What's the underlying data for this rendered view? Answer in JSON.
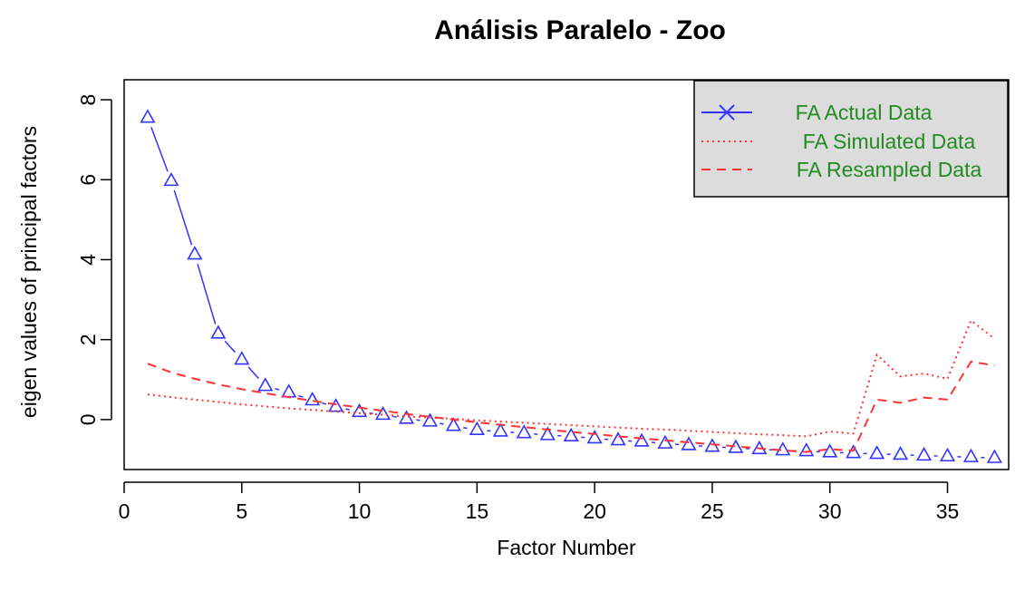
{
  "chart_data": {
    "type": "line",
    "title": "Análisis Paralelo - Zoo",
    "xlabel": "Factor Number",
    "ylabel": "eigen values of principal factors",
    "xlim": [
      0,
      37.6
    ],
    "ylim": [
      -1.25,
      8.5
    ],
    "x_ticks": [
      0,
      5,
      10,
      15,
      20,
      25,
      30,
      35
    ],
    "y_ticks": [
      0,
      2,
      4,
      6,
      8
    ],
    "grid": false,
    "legend_position": "top-right",
    "x": [
      1,
      2,
      3,
      4,
      5,
      6,
      7,
      8,
      9,
      10,
      11,
      12,
      13,
      14,
      15,
      16,
      17,
      18,
      19,
      20,
      21,
      22,
      23,
      24,
      25,
      26,
      27,
      28,
      29,
      30,
      31,
      32,
      33,
      34,
      35,
      36,
      37
    ],
    "series": [
      {
        "name": "FA  Actual Data",
        "color": "#3333ff",
        "style": "solid-with-triangles",
        "values": [
          7.55,
          5.97,
          4.13,
          2.15,
          1.5,
          0.84,
          0.68,
          0.48,
          0.32,
          0.19,
          0.12,
          0.02,
          -0.05,
          -0.16,
          -0.26,
          -0.3,
          -0.34,
          -0.39,
          -0.42,
          -0.47,
          -0.52,
          -0.55,
          -0.6,
          -0.64,
          -0.68,
          -0.71,
          -0.74,
          -0.77,
          -0.79,
          -0.82,
          -0.84,
          -0.86,
          -0.88,
          -0.9,
          -0.92,
          -0.94,
          -0.96
        ]
      },
      {
        "name": "FA  Simulated Data",
        "color": "#ff3333",
        "style": "dotted",
        "values": [
          0.63,
          0.56,
          0.5,
          0.44,
          0.38,
          0.33,
          0.28,
          0.24,
          0.2,
          0.16,
          0.12,
          0.08,
          0.05,
          0.02,
          -0.02,
          -0.05,
          -0.08,
          -0.11,
          -0.14,
          -0.17,
          -0.2,
          -0.23,
          -0.25,
          -0.28,
          -0.31,
          -0.34,
          -0.37,
          -0.39,
          -0.42,
          -0.3,
          -0.35,
          1.62,
          1.08,
          1.15,
          1.02,
          2.48,
          2.02
        ]
      },
      {
        "name": "FA  Resampled Data",
        "color": "#ff3333",
        "style": "dashed",
        "values": [
          1.4,
          1.18,
          1.02,
          0.88,
          0.76,
          0.66,
          0.56,
          0.47,
          0.38,
          0.3,
          0.22,
          0.14,
          0.07,
          0.0,
          -0.07,
          -0.13,
          -0.19,
          -0.25,
          -0.31,
          -0.36,
          -0.42,
          -0.47,
          -0.52,
          -0.57,
          -0.62,
          -0.67,
          -0.72,
          -0.77,
          -0.81,
          -0.74,
          -0.78,
          0.5,
          0.42,
          0.55,
          0.5,
          1.45,
          1.35
        ]
      }
    ]
  },
  "legend": {
    "background": "#dcdcdc",
    "text_color": "#228b22"
  }
}
